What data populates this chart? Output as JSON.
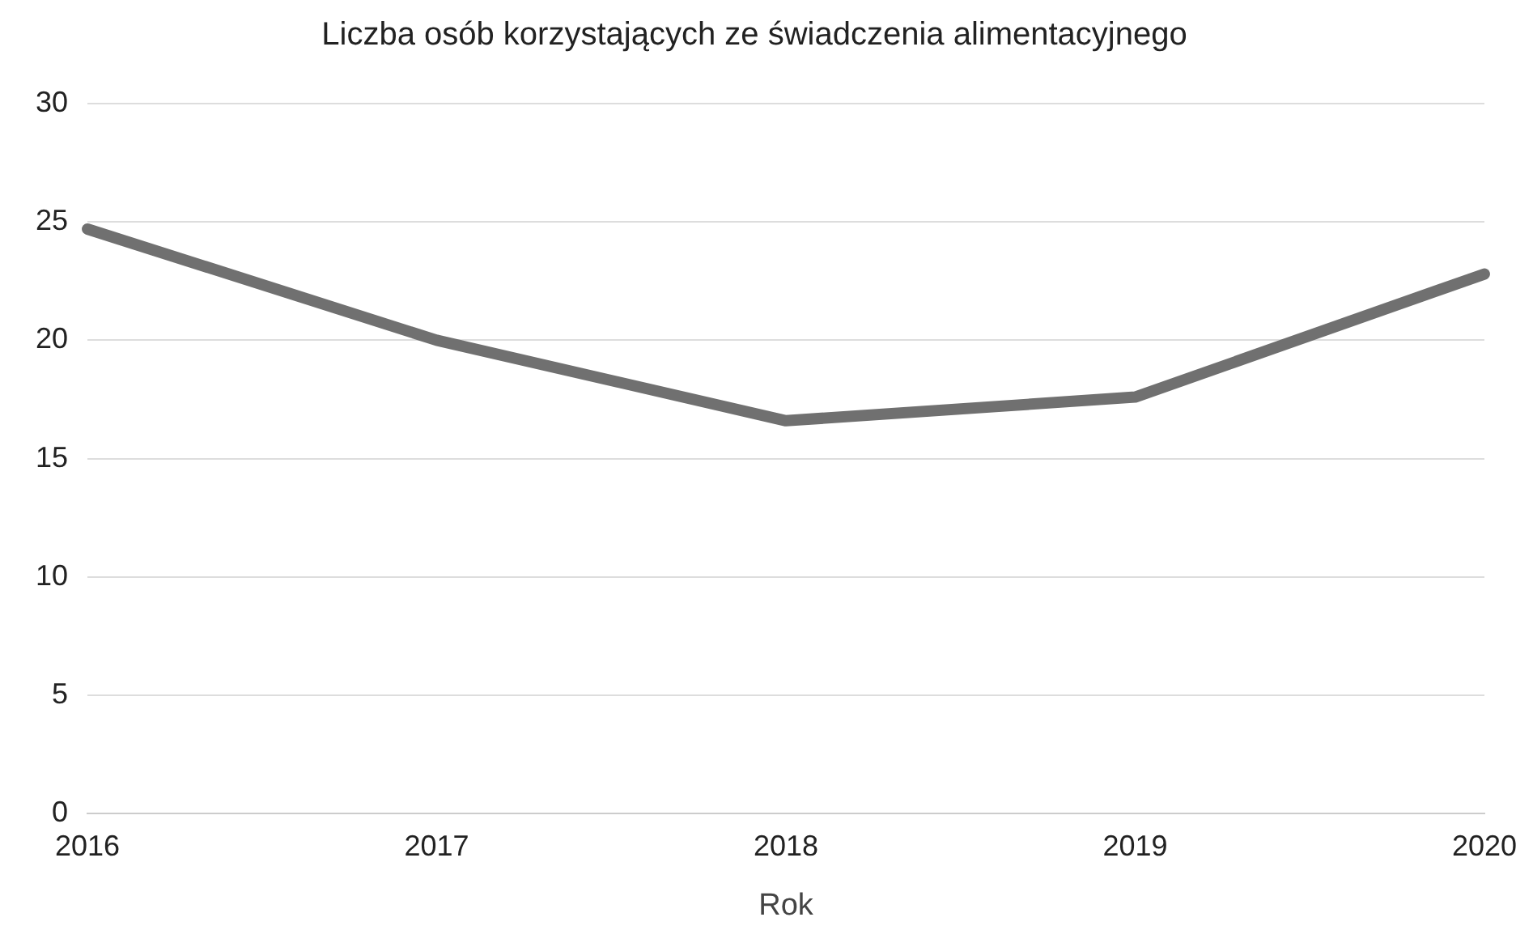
{
  "chart_data": {
    "type": "line",
    "title": "Liczba osób korzystających ze świadczenia alimentacyjnego",
    "xlabel": "Rok",
    "categories": [
      "2016",
      "2017",
      "2018",
      "2019",
      "2020"
    ],
    "series": [
      {
        "color": "#707070",
        "values": [
          24.7,
          20,
          16.6,
          17.6,
          22.8
        ]
      }
    ],
    "ylim": [
      0,
      30
    ],
    "yticks": [
      0,
      5,
      10,
      15,
      20,
      25,
      30
    ],
    "grid": "y",
    "legend": false,
    "marker": "none",
    "line_style": "solid"
  }
}
